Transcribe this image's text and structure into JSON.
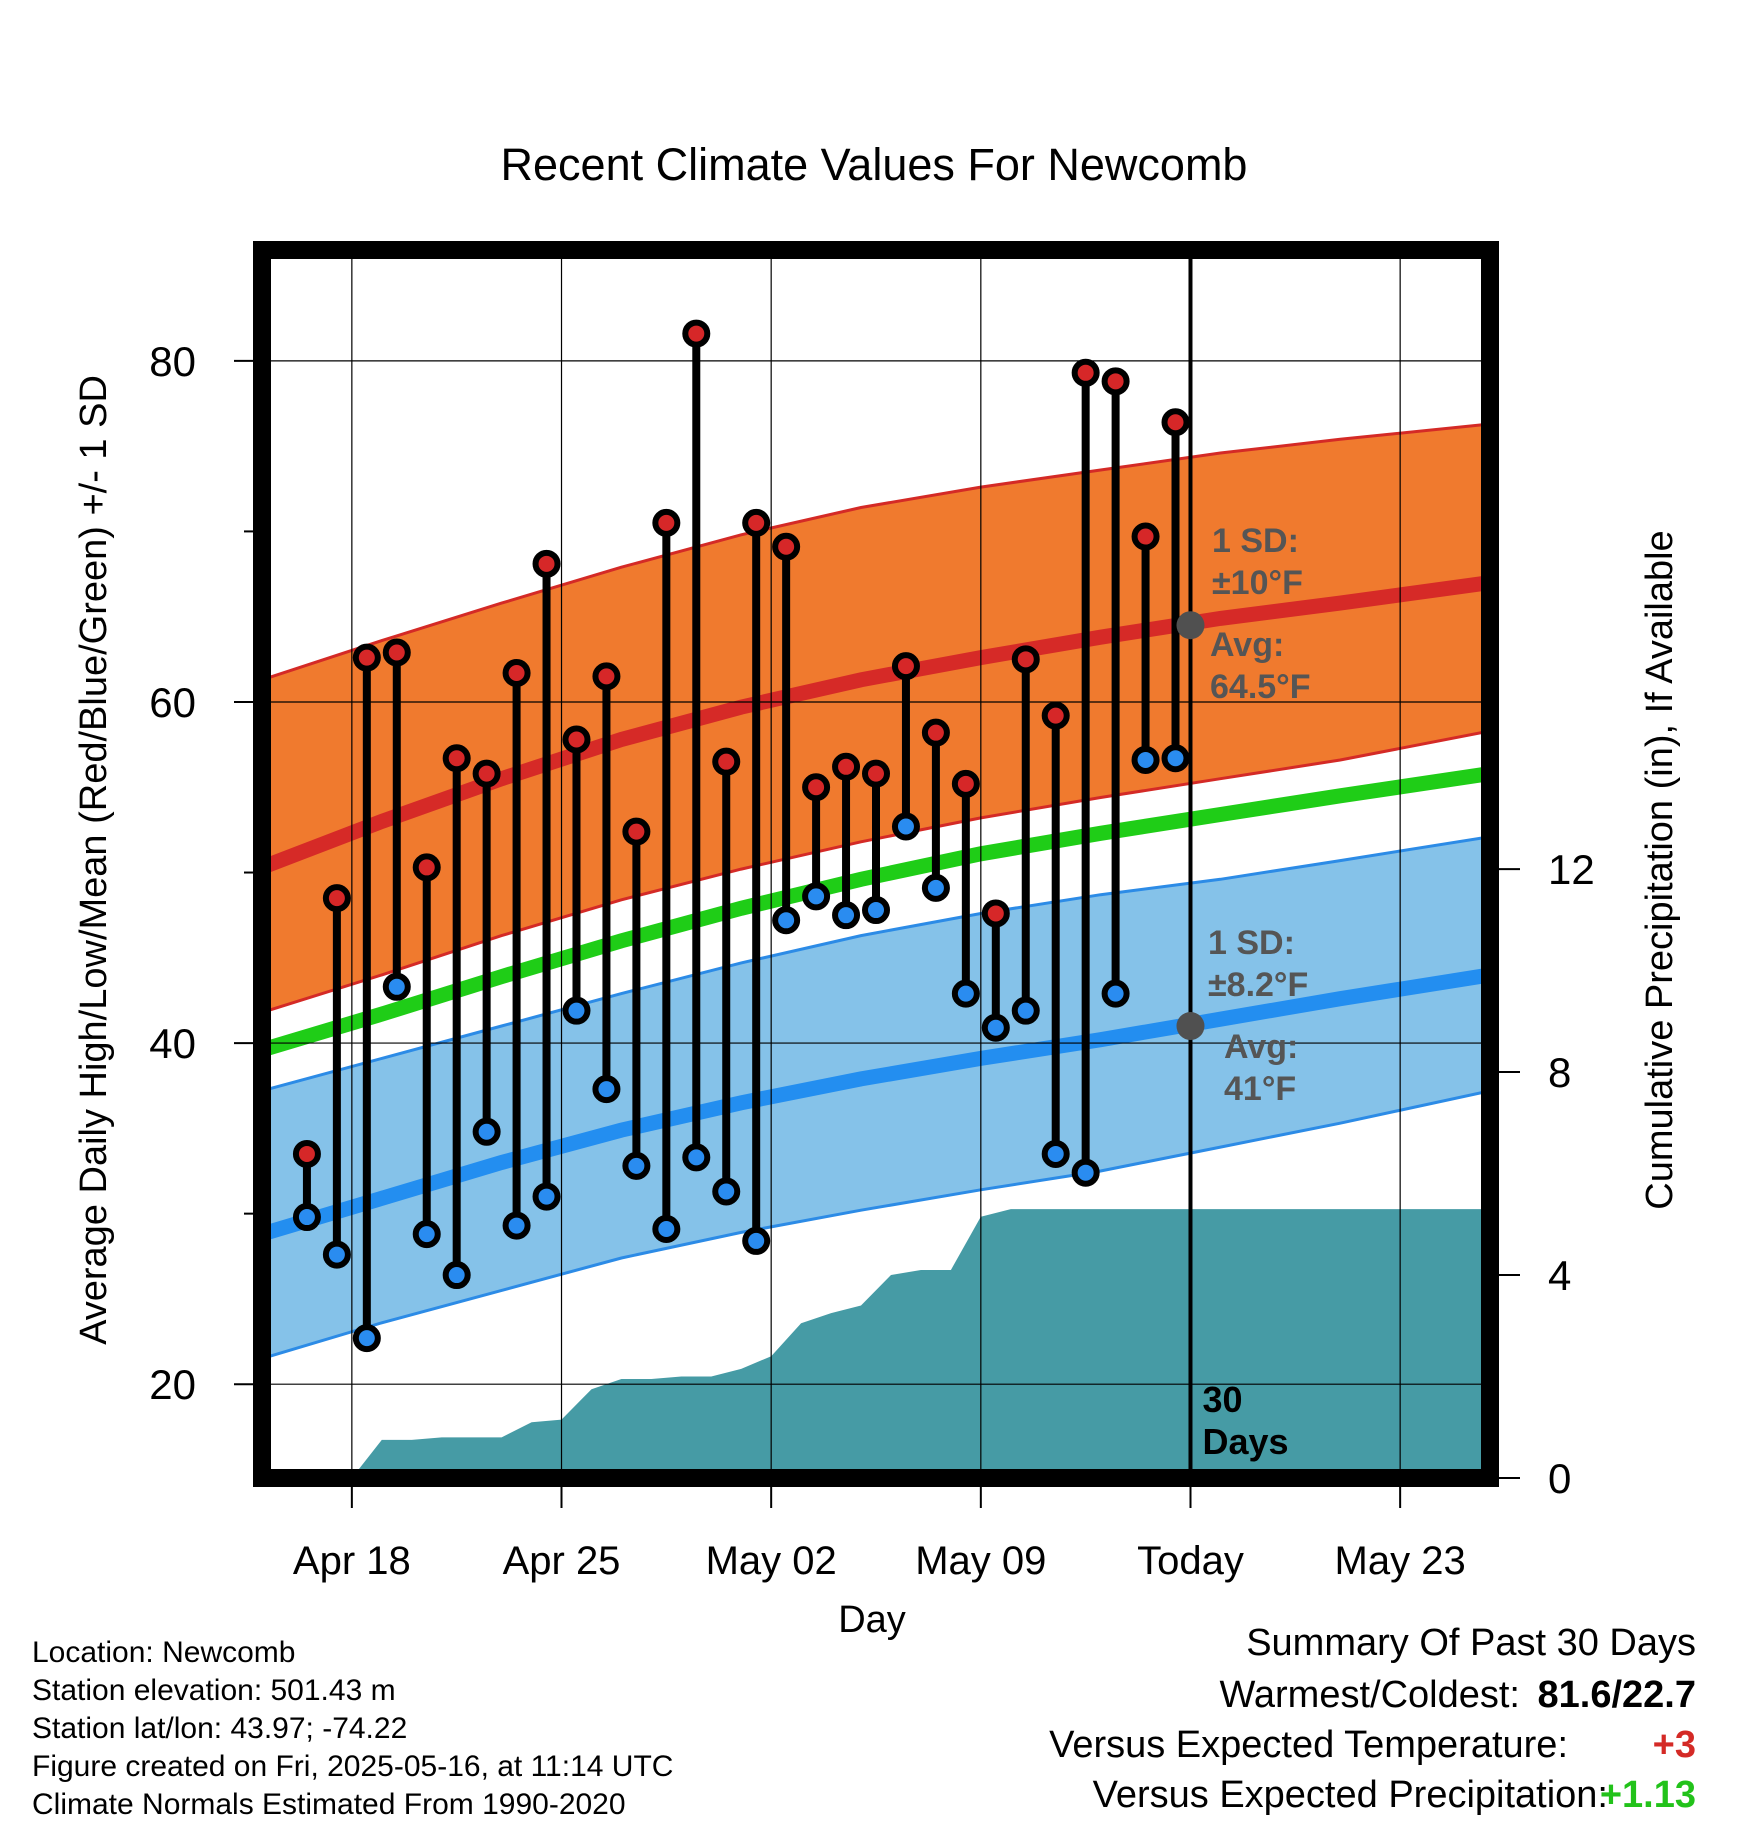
{
  "chart_data": {
    "type": "line",
    "title": "Recent Climate Values For Newcomb",
    "xlabel": "Day",
    "ylabel": "Average Daily High/Low/Mean (Red/Blue/Green) +/- 1 SD",
    "y2label": "Cumulative Precipitation (in), If Available",
    "ylim": [
      14.5,
      86.5
    ],
    "y2lim": [
      0,
      24.2
    ],
    "yticks": [
      20,
      40,
      60,
      80
    ],
    "y2ticks": [
      0,
      4,
      8,
      12
    ],
    "x_range": [
      "2025-04-15",
      "2025-05-26"
    ],
    "x_ticks": [
      {
        "date": "2025-04-18",
        "label": "Apr 18"
      },
      {
        "date": "2025-04-25",
        "label": "Apr 25"
      },
      {
        "date": "2025-05-02",
        "label": "May 02"
      },
      {
        "date": "2025-05-09",
        "label": "May 09"
      },
      {
        "date": "2025-05-16",
        "label": "Today"
      },
      {
        "date": "2025-05-23",
        "label": "May 23"
      }
    ],
    "grid": true,
    "today": "2025-05-16",
    "today_label": "30\nDays",
    "dates": [
      "2025-04-16",
      "2025-04-17",
      "2025-04-18",
      "2025-04-19",
      "2025-04-20",
      "2025-04-21",
      "2025-04-22",
      "2025-04-23",
      "2025-04-24",
      "2025-04-25",
      "2025-04-26",
      "2025-04-27",
      "2025-04-28",
      "2025-04-29",
      "2025-04-30",
      "2025-05-01",
      "2025-05-02",
      "2025-05-03",
      "2025-05-04",
      "2025-05-05",
      "2025-05-06",
      "2025-05-07",
      "2025-05-08",
      "2025-05-09",
      "2025-05-10",
      "2025-05-11",
      "2025-05-12",
      "2025-05-13",
      "2025-05-14",
      "2025-05-15"
    ],
    "highs": [
      33.5,
      48.5,
      62.6,
      62.9,
      50.3,
      56.7,
      55.8,
      61.7,
      68.1,
      57.8,
      61.5,
      52.4,
      70.5,
      81.6,
      56.5,
      70.5,
      69.1,
      55.0,
      56.2,
      55.8,
      62.1,
      58.2,
      55.2,
      47.6,
      62.5,
      59.2,
      79.3,
      78.8,
      69.7,
      76.4
    ],
    "lows": [
      29.8,
      27.6,
      22.7,
      43.3,
      28.8,
      26.4,
      34.8,
      29.3,
      31.0,
      41.9,
      37.3,
      32.8,
      29.1,
      33.3,
      31.3,
      28.4,
      47.2,
      48.6,
      47.5,
      47.8,
      52.7,
      49.1,
      42.9,
      40.9,
      41.9,
      33.5,
      32.4,
      42.9,
      56.6,
      56.7
    ],
    "normals": {
      "days": [
        "2025-04-15",
        "2025-04-19",
        "2025-04-23",
        "2025-04-27",
        "2025-05-01",
        "2025-05-05",
        "2025-05-09",
        "2025-05-13",
        "2025-05-17",
        "2025-05-21",
        "2025-05-26"
      ],
      "high_mean": [
        50.3,
        53.0,
        55.5,
        57.8,
        59.7,
        61.3,
        62.6,
        63.8,
        64.9,
        65.8,
        67.0
      ],
      "high_plus_sd": [
        61.3,
        63.6,
        65.8,
        67.9,
        69.8,
        71.4,
        72.6,
        73.6,
        74.6,
        75.4,
        76.3
      ],
      "high_minus_sd": [
        41.8,
        44.0,
        46.3,
        48.4,
        50.2,
        51.8,
        53.2,
        54.4,
        55.5,
        56.6,
        58.3
      ],
      "mean": [
        39.6,
        41.7,
        43.9,
        46.0,
        47.9,
        49.6,
        51.1,
        52.3,
        53.4,
        54.5,
        55.8
      ],
      "low_mean": [
        28.8,
        30.9,
        33.0,
        34.9,
        36.5,
        37.9,
        39.1,
        40.2,
        41.4,
        42.6,
        44.0
      ],
      "low_plus_sd": [
        37.2,
        39.1,
        41.0,
        42.9,
        44.7,
        46.3,
        47.6,
        48.7,
        49.6,
        50.7,
        52.1
      ],
      "low_minus_sd": [
        21.5,
        23.6,
        25.5,
        27.4,
        28.9,
        30.2,
        31.4,
        32.5,
        33.9,
        35.3,
        37.2
      ]
    },
    "precip": {
      "dates": [
        "2025-04-18",
        "2025-04-19",
        "2025-04-20",
        "2025-04-21",
        "2025-04-22",
        "2025-04-23",
        "2025-04-24",
        "2025-04-25",
        "2025-04-26",
        "2025-04-27",
        "2025-04-28",
        "2025-04-29",
        "2025-04-30",
        "2025-05-01",
        "2025-05-02",
        "2025-05-03",
        "2025-05-04",
        "2025-05-05",
        "2025-05-06",
        "2025-05-07",
        "2025-05-08",
        "2025-05-09",
        "2025-05-10",
        "2025-05-11",
        "2025-05-12",
        "2025-05-13",
        "2025-05-14",
        "2025-05-15",
        "2025-05-16",
        "2025-05-26"
      ],
      "values": [
        0.0,
        0.75,
        0.75,
        0.8,
        0.8,
        0.8,
        1.1,
        1.15,
        1.75,
        1.95,
        1.95,
        2.0,
        2.0,
        2.15,
        2.4,
        3.05,
        3.25,
        3.4,
        4.0,
        4.1,
        4.1,
        5.15,
        5.3,
        5.3,
        5.3,
        5.3,
        5.3,
        5.3,
        5.3,
        5.3
      ]
    },
    "annotations": [
      {
        "text": "1 SD:\n±10°F",
        "series": "high"
      },
      {
        "text": "Avg:\n64.5°F",
        "series": "high",
        "date": "2025-05-16",
        "value": 64.5
      },
      {
        "text": "1 SD:\n±8.2°F",
        "series": "low"
      },
      {
        "text": "Avg:\n41°F",
        "series": "low",
        "date": "2025-05-16",
        "value": 41
      }
    ],
    "colors": {
      "high_band": "#f07a2e",
      "high_edge": "#d42a26",
      "high_mean": "#d62a27",
      "mean_line": "#1fcd17",
      "low_band": "#85c2e9",
      "low_edge": "#2c8be6",
      "low_mean": "#238ef0",
      "precip": "#469ba5",
      "high_marker": "#d62728",
      "low_marker": "#2a8cf0",
      "annotation": "#555555"
    }
  },
  "info": {
    "location": "Location: Newcomb",
    "elevation": "Station elevation: 501.43 m",
    "latlon": "Station lat/lon: 43.97; -74.22",
    "created": "Figure created on Fri, 2025-05-16, at 11:14 UTC",
    "normals": "Climate Normals Estimated From 1990-2020"
  },
  "summary": {
    "title": "Summary Of Past 30 Days",
    "warm_label": "Warmest/Coldest:",
    "warm_value": "81.6/22.7",
    "temp_label": "Versus Expected Temperature:",
    "temp_value": "+3",
    "temp_color": "#d42a26",
    "precip_label": "Versus Expected Precipitation:",
    "precip_value": "+1.13",
    "precip_color": "#22c21a"
  }
}
